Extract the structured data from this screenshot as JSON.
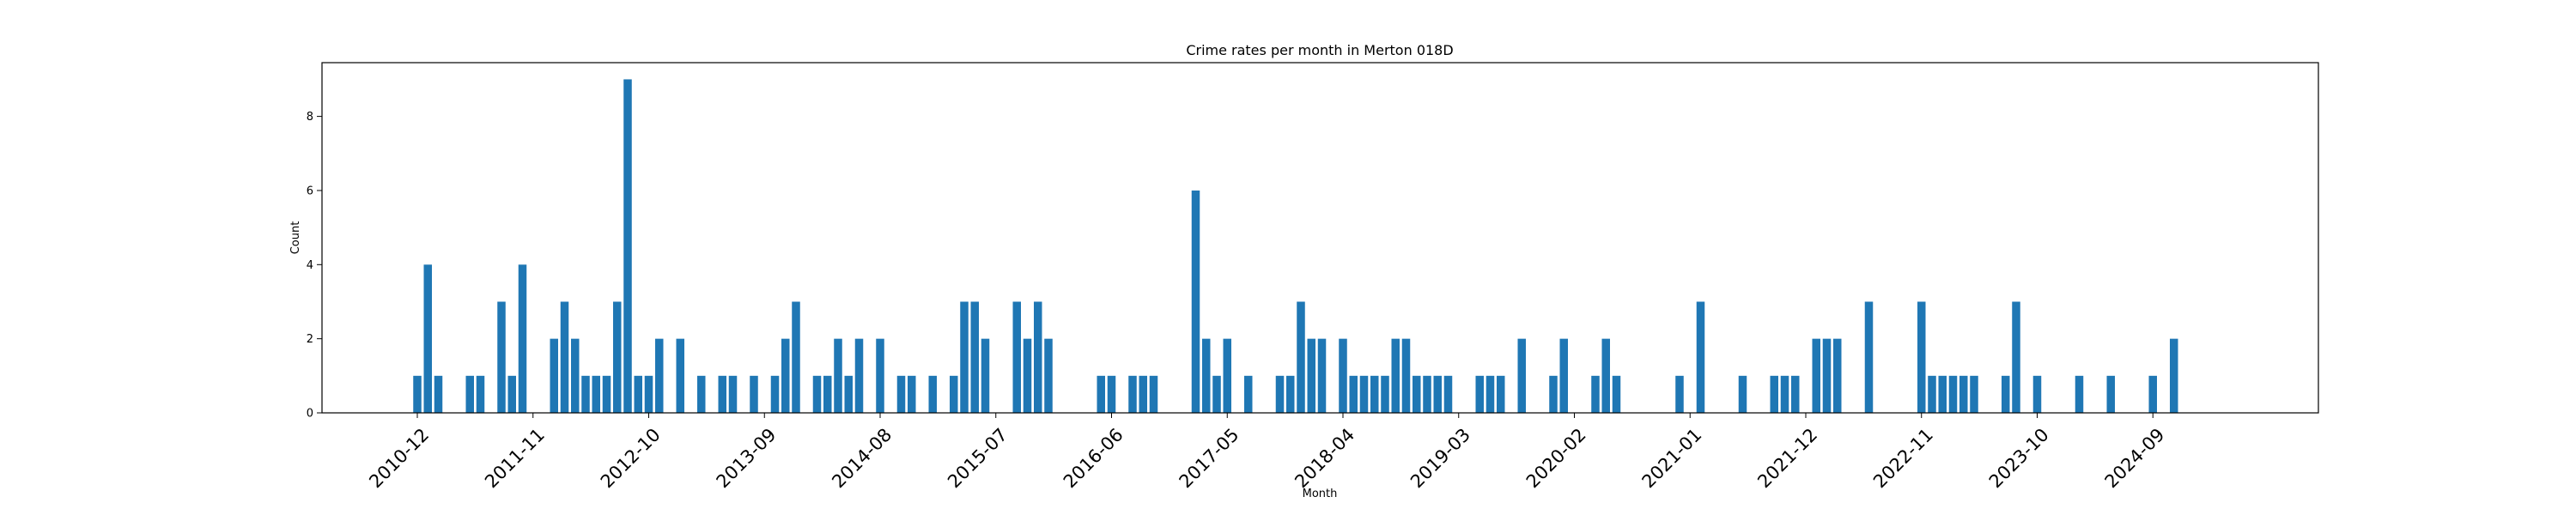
{
  "chart_data": {
    "type": "bar",
    "title": "Crime rates per month in Merton 018D",
    "xlabel": "Month",
    "ylabel": "Count",
    "ylim": [
      0,
      9.45
    ],
    "yticks": [
      0,
      2,
      4,
      6,
      8
    ],
    "xtick_labels": [
      "2010-12",
      "2011-11",
      "2012-10",
      "2013-09",
      "2014-08",
      "2015-07",
      "2016-06",
      "2017-05",
      "2018-04",
      "2019-03",
      "2020-02",
      "2021-01",
      "2021-12",
      "2022-11",
      "2023-10",
      "2024-09"
    ],
    "bar_color": "#1f77b4",
    "categories": [
      "2010-12",
      "2011-01",
      "2011-02",
      "2011-05",
      "2011-06",
      "2011-08",
      "2011-09",
      "2011-10",
      "2012-01",
      "2012-02",
      "2012-03",
      "2012-04",
      "2012-05",
      "2012-06",
      "2012-07",
      "2012-08",
      "2012-09",
      "2012-10",
      "2012-11",
      "2013-01",
      "2013-03",
      "2013-05",
      "2013-06",
      "2013-08",
      "2013-10",
      "2013-11",
      "2013-12",
      "2014-02",
      "2014-03",
      "2014-04",
      "2014-05",
      "2014-06",
      "2014-08",
      "2014-10",
      "2014-11",
      "2015-01",
      "2015-03",
      "2015-04",
      "2015-05",
      "2015-06",
      "2015-09",
      "2015-10",
      "2015-11",
      "2015-12",
      "2016-05",
      "2016-06",
      "2016-08",
      "2016-09",
      "2016-10",
      "2017-02",
      "2017-03",
      "2017-04",
      "2017-05",
      "2017-07",
      "2017-10",
      "2017-11",
      "2017-12",
      "2018-01",
      "2018-02",
      "2018-04",
      "2018-05",
      "2018-06",
      "2018-07",
      "2018-08",
      "2018-09",
      "2018-10",
      "2018-11",
      "2018-12",
      "2019-01",
      "2019-02",
      "2019-05",
      "2019-06",
      "2019-07",
      "2019-09",
      "2019-12",
      "2020-01",
      "2020-04",
      "2020-05",
      "2020-06",
      "2020-12",
      "2021-02",
      "2021-06",
      "2021-09",
      "2021-10",
      "2021-11",
      "2022-01",
      "2022-02",
      "2022-03",
      "2022-06",
      "2022-11",
      "2022-12",
      "2023-01",
      "2023-02",
      "2023-03",
      "2023-04",
      "2023-07",
      "2023-08",
      "2023-10",
      "2024-02",
      "2024-05",
      "2024-09",
      "2024-11"
    ],
    "values": [
      1,
      4,
      1,
      1,
      1,
      3,
      1,
      4,
      2,
      3,
      2,
      1,
      1,
      1,
      3,
      9,
      1,
      1,
      2,
      2,
      1,
      1,
      1,
      1,
      1,
      2,
      3,
      1,
      1,
      2,
      1,
      2,
      2,
      1,
      1,
      1,
      1,
      3,
      3,
      2,
      3,
      2,
      3,
      2,
      1,
      1,
      1,
      1,
      1,
      6,
      2,
      1,
      2,
      1,
      1,
      1,
      3,
      2,
      2,
      2,
      1,
      1,
      1,
      1,
      2,
      2,
      1,
      1,
      1,
      1,
      1,
      1,
      1,
      2,
      1,
      2,
      1,
      2,
      1,
      1,
      3,
      1,
      1,
      1,
      1,
      2,
      2,
      2,
      3,
      3,
      1,
      1,
      1,
      1,
      1,
      1,
      3,
      1,
      1,
      1,
      1,
      2
    ]
  }
}
